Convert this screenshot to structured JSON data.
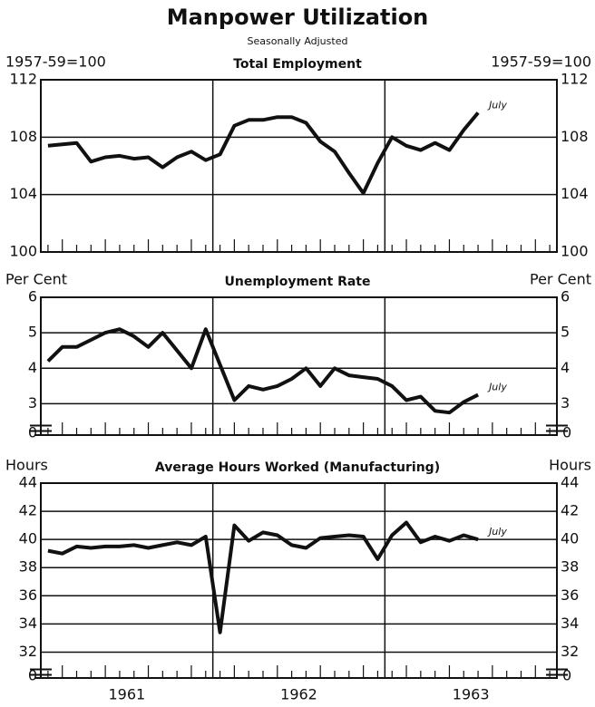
{
  "title": "Manpower Utilization",
  "subtitle": "Seasonally Adjusted",
  "x_labels": [
    "1961",
    "1962",
    "1963"
  ],
  "chart_data": [
    {
      "type": "line",
      "title": "Total Employment",
      "y_label": "1957-59=100",
      "annotation": "July",
      "color": "#111111",
      "ylim": [
        100,
        112
      ],
      "yticks": [
        100,
        104,
        108,
        112
      ],
      "grid": true,
      "values": [
        107.4,
        107.5,
        107.6,
        106.3,
        106.6,
        106.7,
        106.5,
        106.6,
        105.9,
        106.6,
        107.0,
        106.4,
        106.8,
        108.8,
        109.2,
        109.2,
        109.4,
        109.4,
        109.0,
        107.7,
        107.0,
        105.5,
        104.1,
        106.2,
        108.0,
        107.4,
        107.1,
        107.6,
        107.1,
        108.5,
        109.7
      ]
    },
    {
      "type": "line",
      "title": "Unemployment Rate",
      "y_label": "Per Cent",
      "annotation": "July",
      "color": "#111111",
      "ylim": [
        2.5,
        6
      ],
      "yticks": [
        3,
        4,
        5,
        6
      ],
      "baseline_tick": 0,
      "grid": true,
      "values": [
        4.2,
        4.6,
        4.6,
        4.8,
        5.0,
        5.1,
        4.9,
        4.6,
        5.0,
        4.5,
        4.0,
        5.1,
        4.1,
        3.1,
        3.5,
        3.4,
        3.5,
        3.7,
        4.0,
        3.5,
        4.0,
        3.8,
        3.75,
        3.7,
        3.5,
        3.1,
        3.2,
        2.8,
        2.75,
        3.05,
        3.25
      ]
    },
    {
      "type": "line",
      "title": "Average Hours Worked (Manufacturing)",
      "y_label": "Hours",
      "annotation": "July",
      "color": "#111111",
      "ylim": [
        31,
        44
      ],
      "yticks": [
        32,
        34,
        36,
        38,
        40,
        42,
        44
      ],
      "baseline_tick": 0,
      "grid": true,
      "values": [
        39.2,
        39.0,
        39.5,
        39.4,
        39.5,
        39.5,
        39.6,
        39.4,
        39.6,
        39.8,
        39.6,
        40.2,
        33.4,
        41.0,
        39.9,
        40.5,
        40.3,
        39.6,
        39.4,
        40.1,
        40.2,
        40.3,
        40.2,
        38.6,
        40.3,
        41.2,
        39.8,
        40.2,
        39.9,
        40.3,
        40.0
      ]
    }
  ]
}
